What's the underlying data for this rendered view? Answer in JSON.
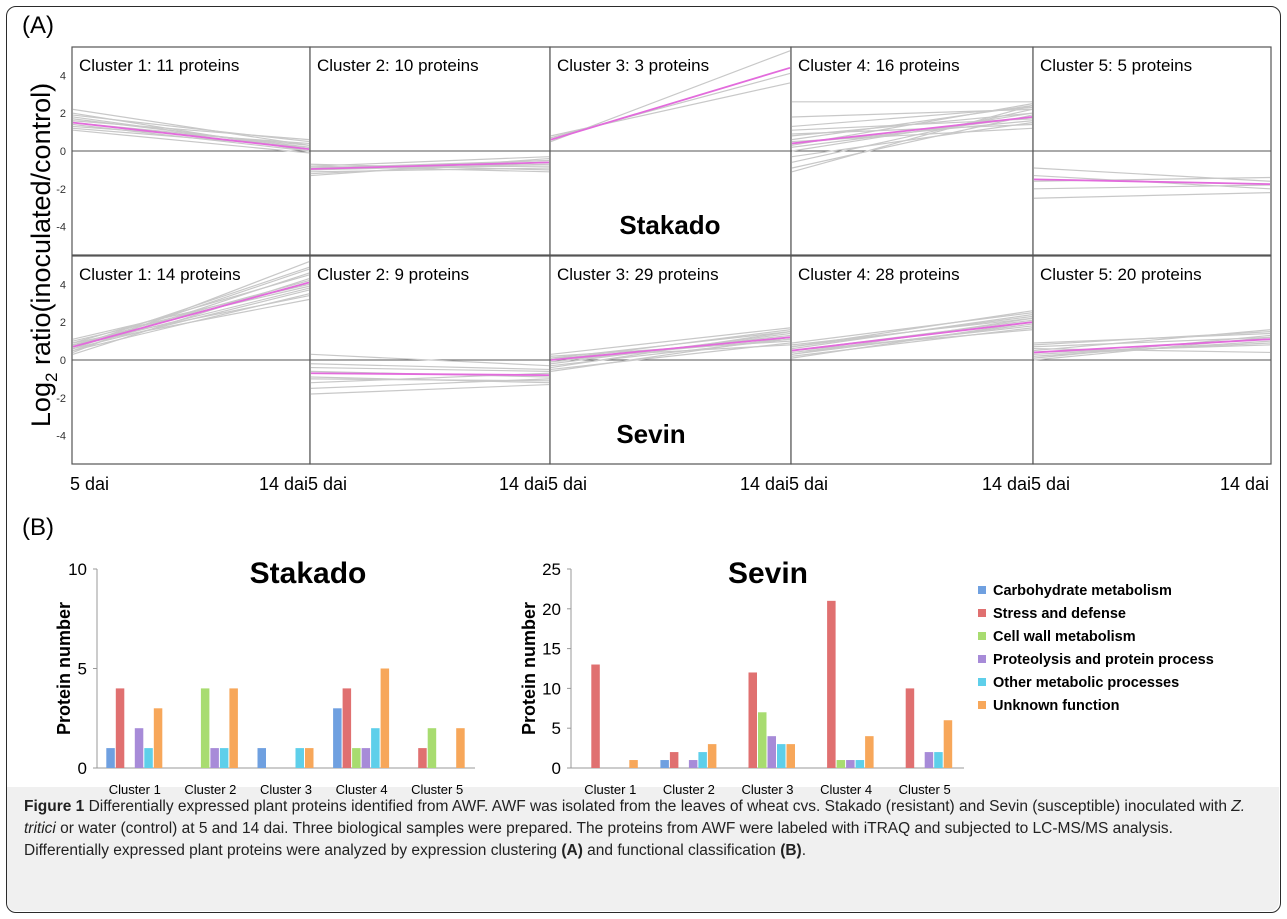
{
  "panel_a_label": "(A)",
  "panel_b_label": "(B)",
  "chart_data": [
    {
      "type": "line",
      "panel": "A",
      "ylabel": "Log2 ratio(inoculated/control)",
      "ylabel_text": "Log",
      "ylabel_sub": "2",
      "ylabel_rest": " ratio(inoculated/control)",
      "x": [
        "5 dai",
        "14 dai"
      ],
      "ylim": [
        -5.5,
        5.5
      ],
      "yticks": [
        4,
        2,
        0,
        -2,
        -4
      ],
      "row_labels": [
        "Stakado",
        "Sevin"
      ],
      "colors": {
        "mean": "#e26bdc",
        "member": "#c8c8c8",
        "axis": "#555555"
      },
      "rows": [
        {
          "cultivar": "Stakado",
          "clusters": [
            {
              "title": "Cluster 1: 11 proteins",
              "mean": [
                1.5,
                0.1
              ],
              "members": [
                [
                  2.2,
                  0.3
                ],
                [
                  1.9,
                  0.5
                ],
                [
                  1.7,
                  0.2
                ],
                [
                  1.6,
                  0.6
                ],
                [
                  1.4,
                  0.0
                ],
                [
                  1.3,
                  0.4
                ],
                [
                  1.1,
                  -0.1
                ],
                [
                  1.8,
                  0.1
                ],
                [
                  1.2,
                  0.2
                ],
                [
                  2.0,
                  0.0
                ],
                [
                  1.5,
                  0.3
                ]
              ]
            },
            {
              "title": "Cluster 2: 10 proteins",
              "mean": [
                -0.95,
                -0.6
              ],
              "members": [
                [
                  -0.8,
                  -0.3
                ],
                [
                  -1.0,
                  -0.7
                ],
                [
                  -1.1,
                  -0.9
                ],
                [
                  -0.9,
                  -0.5
                ],
                [
                  -1.3,
                  -0.4
                ],
                [
                  -0.7,
                  -1.0
                ],
                [
                  -1.2,
                  -0.6
                ],
                [
                  -0.9,
                  -0.8
                ],
                [
                  -1.0,
                  -0.5
                ],
                [
                  -0.8,
                  -1.1
                ]
              ]
            },
            {
              "title": "Cluster 3: 3 proteins",
              "mean": [
                0.6,
                4.4
              ],
              "members": [
                [
                  0.5,
                  5.3
                ],
                [
                  0.8,
                  3.6
                ],
                [
                  0.7,
                  4.1
                ]
              ]
            },
            {
              "title": "Cluster 4: 16 proteins",
              "mean": [
                0.4,
                1.8
              ],
              "members": [
                [
                  2.6,
                  2.6
                ],
                [
                  1.8,
                  2.2
                ],
                [
                  1.3,
                  2.3
                ],
                [
                  0.8,
                  2.0
                ],
                [
                  0.6,
                  2.4
                ],
                [
                  0.4,
                  1.6
                ],
                [
                  0.2,
                  1.8
                ],
                [
                  0.0,
                  2.0
                ],
                [
                  -0.3,
                  1.5
                ],
                [
                  -0.6,
                  2.2
                ],
                [
                  -0.9,
                  1.9
                ],
                [
                  -1.1,
                  2.4
                ],
                [
                  0.9,
                  1.4
                ],
                [
                  1.1,
                  1.7
                ],
                [
                  0.3,
                  2.5
                ],
                [
                  0.5,
                  1.2
                ]
              ]
            },
            {
              "title": "Cluster 5: 5 proteins",
              "mean": [
                -1.5,
                -1.75
              ],
              "members": [
                [
                  -0.9,
                  -1.6
                ],
                [
                  -1.3,
                  -2.0
                ],
                [
                  -1.6,
                  -1.4
                ],
                [
                  -2.0,
                  -1.8
                ],
                [
                  -2.5,
                  -2.2
                ]
              ]
            }
          ]
        },
        {
          "cultivar": "Sevin",
          "clusters": [
            {
              "title": "Cluster 1: 14 proteins",
              "mean": [
                0.7,
                4.1
              ],
              "members": [
                [
                  0.4,
                  5.2
                ],
                [
                  0.6,
                  4.8
                ],
                [
                  0.9,
                  4.5
                ],
                [
                  1.0,
                  3.9
                ],
                [
                  0.5,
                  3.5
                ],
                [
                  0.8,
                  3.2
                ],
                [
                  0.3,
                  4.3
                ],
                [
                  0.7,
                  4.9
                ],
                [
                  1.1,
                  4.0
                ],
                [
                  0.6,
                  3.7
                ],
                [
                  0.9,
                  3.4
                ],
                [
                  0.5,
                  4.6
                ],
                [
                  0.8,
                  4.2
                ],
                [
                  0.7,
                  3.8
                ]
              ]
            },
            {
              "title": "Cluster 2: 9 proteins",
              "mean": [
                -0.7,
                -0.8
              ],
              "members": [
                [
                  0.3,
                  -0.3
                ],
                [
                  -0.2,
                  -0.5
                ],
                [
                  -0.6,
                  -0.9
                ],
                [
                  -0.9,
                  -1.2
                ],
                [
                  -1.2,
                  -0.7
                ],
                [
                  -1.5,
                  -1.0
                ],
                [
                  -1.8,
                  -1.3
                ],
                [
                  -0.4,
                  -0.6
                ],
                [
                  -1.0,
                  -1.1
                ]
              ]
            },
            {
              "title": "Cluster 3: 29 proteins",
              "mean": [
                0.0,
                1.2
              ],
              "members": [
                [
                  0.3,
                  1.7
                ],
                [
                  0.1,
                  1.5
                ],
                [
                  -0.1,
                  1.3
                ],
                [
                  -0.3,
                  1.1
                ],
                [
                  -0.5,
                  0.9
                ],
                [
                  -0.2,
                  1.4
                ],
                [
                  0.2,
                  1.0
                ],
                [
                  0.0,
                  1.6
                ],
                [
                  -0.6,
                  1.2
                ],
                [
                  0.1,
                  0.8
                ],
                [
                  -0.4,
                  1.5
                ],
                [
                  0.0,
                  1.1
                ]
              ]
            },
            {
              "title": "Cluster 4: 28 proteins",
              "mean": [
                0.5,
                2.0
              ],
              "members": [
                [
                  0.9,
                  2.5
                ],
                [
                  0.7,
                  2.3
                ],
                [
                  0.5,
                  2.1
                ],
                [
                  0.3,
                  1.9
                ],
                [
                  0.2,
                  1.7
                ],
                [
                  0.6,
                  2.4
                ],
                [
                  0.4,
                  1.8
                ],
                [
                  0.8,
                  2.2
                ],
                [
                  0.1,
                  2.0
                ],
                [
                  0.5,
                  1.6
                ],
                [
                  0.7,
                  2.6
                ],
                [
                  0.3,
                  2.2
                ]
              ]
            },
            {
              "title": "Cluster 5: 20 proteins",
              "mean": [
                0.4,
                1.1
              ],
              "members": [
                [
                  0.9,
                  1.4
                ],
                [
                  0.7,
                  1.2
                ],
                [
                  0.5,
                  1.6
                ],
                [
                  0.3,
                  0.9
                ],
                [
                  0.1,
                  1.3
                ],
                [
                  0.6,
                  0.4
                ],
                [
                  0.2,
                  1.0
                ],
                [
                  0.8,
                  1.5
                ],
                [
                  0.4,
                  0.8
                ],
                [
                  0.0,
                  1.2
                ]
              ]
            }
          ]
        }
      ]
    },
    {
      "type": "bar",
      "panel": "B",
      "title": "Stakado",
      "ylabel": "Protein number",
      "ylim": [
        0,
        10
      ],
      "yticks": [
        0,
        5,
        10
      ],
      "categories": [
        "Cluster 1",
        "Cluster 2",
        "Cluster 3",
        "Cluster 4",
        "Cluster 5"
      ],
      "series": [
        {
          "name": "Carbohydrate metabolism",
          "color": "#6fa0e0",
          "values": [
            1,
            0,
            1,
            3,
            0
          ]
        },
        {
          "name": "Stress and defense",
          "color": "#e07070",
          "values": [
            4,
            0,
            0,
            4,
            1
          ]
        },
        {
          "name": "Cell wall metabolism",
          "color": "#a8dc70",
          "values": [
            0,
            4,
            0,
            1,
            2
          ]
        },
        {
          "name": "Proteolysis and protein process",
          "color": "#a78bd8",
          "values": [
            2,
            1,
            0,
            1,
            0
          ]
        },
        {
          "name": "Other metabolic processes",
          "color": "#5ecfea",
          "values": [
            1,
            1,
            1,
            2,
            0
          ]
        },
        {
          "name": "Unknown function",
          "color": "#f7a75a",
          "values": [
            3,
            4,
            1,
            5,
            2
          ]
        }
      ]
    },
    {
      "type": "bar",
      "panel": "B",
      "title": "Sevin",
      "ylabel": "Protein number",
      "ylim": [
        0,
        25
      ],
      "yticks": [
        0,
        5,
        10,
        15,
        20,
        25
      ],
      "categories": [
        "Cluster 1",
        "Cluster 2",
        "Cluster 3",
        "Cluster 4",
        "Cluster 5"
      ],
      "legend": "right",
      "series": [
        {
          "name": "Carbohydrate metabolism",
          "color": "#6fa0e0",
          "values": [
            0,
            1,
            0,
            0,
            0
          ]
        },
        {
          "name": "Stress and defense",
          "color": "#e07070",
          "values": [
            13,
            2,
            12,
            21,
            10
          ]
        },
        {
          "name": "Cell wall metabolism",
          "color": "#a8dc70",
          "values": [
            0,
            0,
            7,
            1,
            0
          ]
        },
        {
          "name": "Proteolysis and protein process",
          "color": "#a78bd8",
          "values": [
            0,
            1,
            4,
            1,
            2
          ]
        },
        {
          "name": "Other metabolic processes",
          "color": "#5ecfea",
          "values": [
            0,
            2,
            3,
            1,
            2
          ]
        },
        {
          "name": "Unknown function",
          "color": "#f7a75a",
          "values": [
            1,
            3,
            3,
            4,
            6
          ]
        }
      ]
    }
  ],
  "caption": {
    "label": "Figure 1",
    "p1": " Differentially expressed plant proteins identified from AWF. AWF was isolated from the leaves of wheat cvs. Stakado (resistant) and Sevin (susceptible) inoculated with ",
    "species": "Z. tritici",
    "p2": " or water (control) at 5 and 14 dai. Three biological samples were prepared. The proteins from AWF were labeled with iTRAQ and subjected to LC-MS/MS analysis. Differentially expressed plant proteins were analyzed by expression clustering ",
    "ref_a": "(A)",
    "p3": " and functional classification ",
    "ref_b": "(B)",
    "p4": "."
  }
}
